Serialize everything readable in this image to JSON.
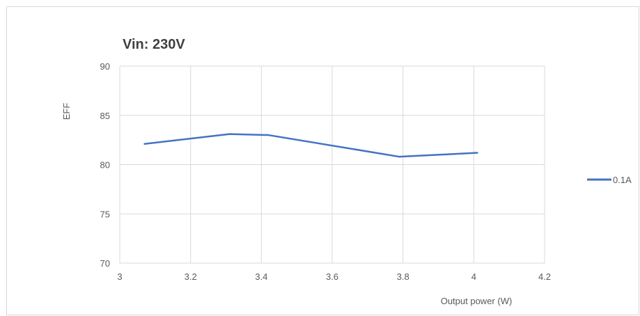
{
  "chart_data": {
    "type": "line",
    "title": "Vin: 230V",
    "xlabel": "Output power (W)",
    "ylabel": "EFF",
    "xlim": [
      3,
      4.2
    ],
    "ylim": [
      70,
      90
    ],
    "x_ticks": [
      "3",
      "3.2",
      "3.4",
      "3.6",
      "3.8",
      "4",
      "4.2"
    ],
    "y_ticks": [
      "70",
      "75",
      "80",
      "85",
      "90"
    ],
    "grid": true,
    "legend_position": "right",
    "series": [
      {
        "name": "0.1A",
        "color": "#4472c4",
        "points": [
          {
            "x": 3.07,
            "y": 82.1
          },
          {
            "x": 3.31,
            "y": 83.1
          },
          {
            "x": 3.42,
            "y": 83.0
          },
          {
            "x": 3.79,
            "y": 80.8
          },
          {
            "x": 4.01,
            "y": 81.2
          }
        ]
      }
    ]
  }
}
